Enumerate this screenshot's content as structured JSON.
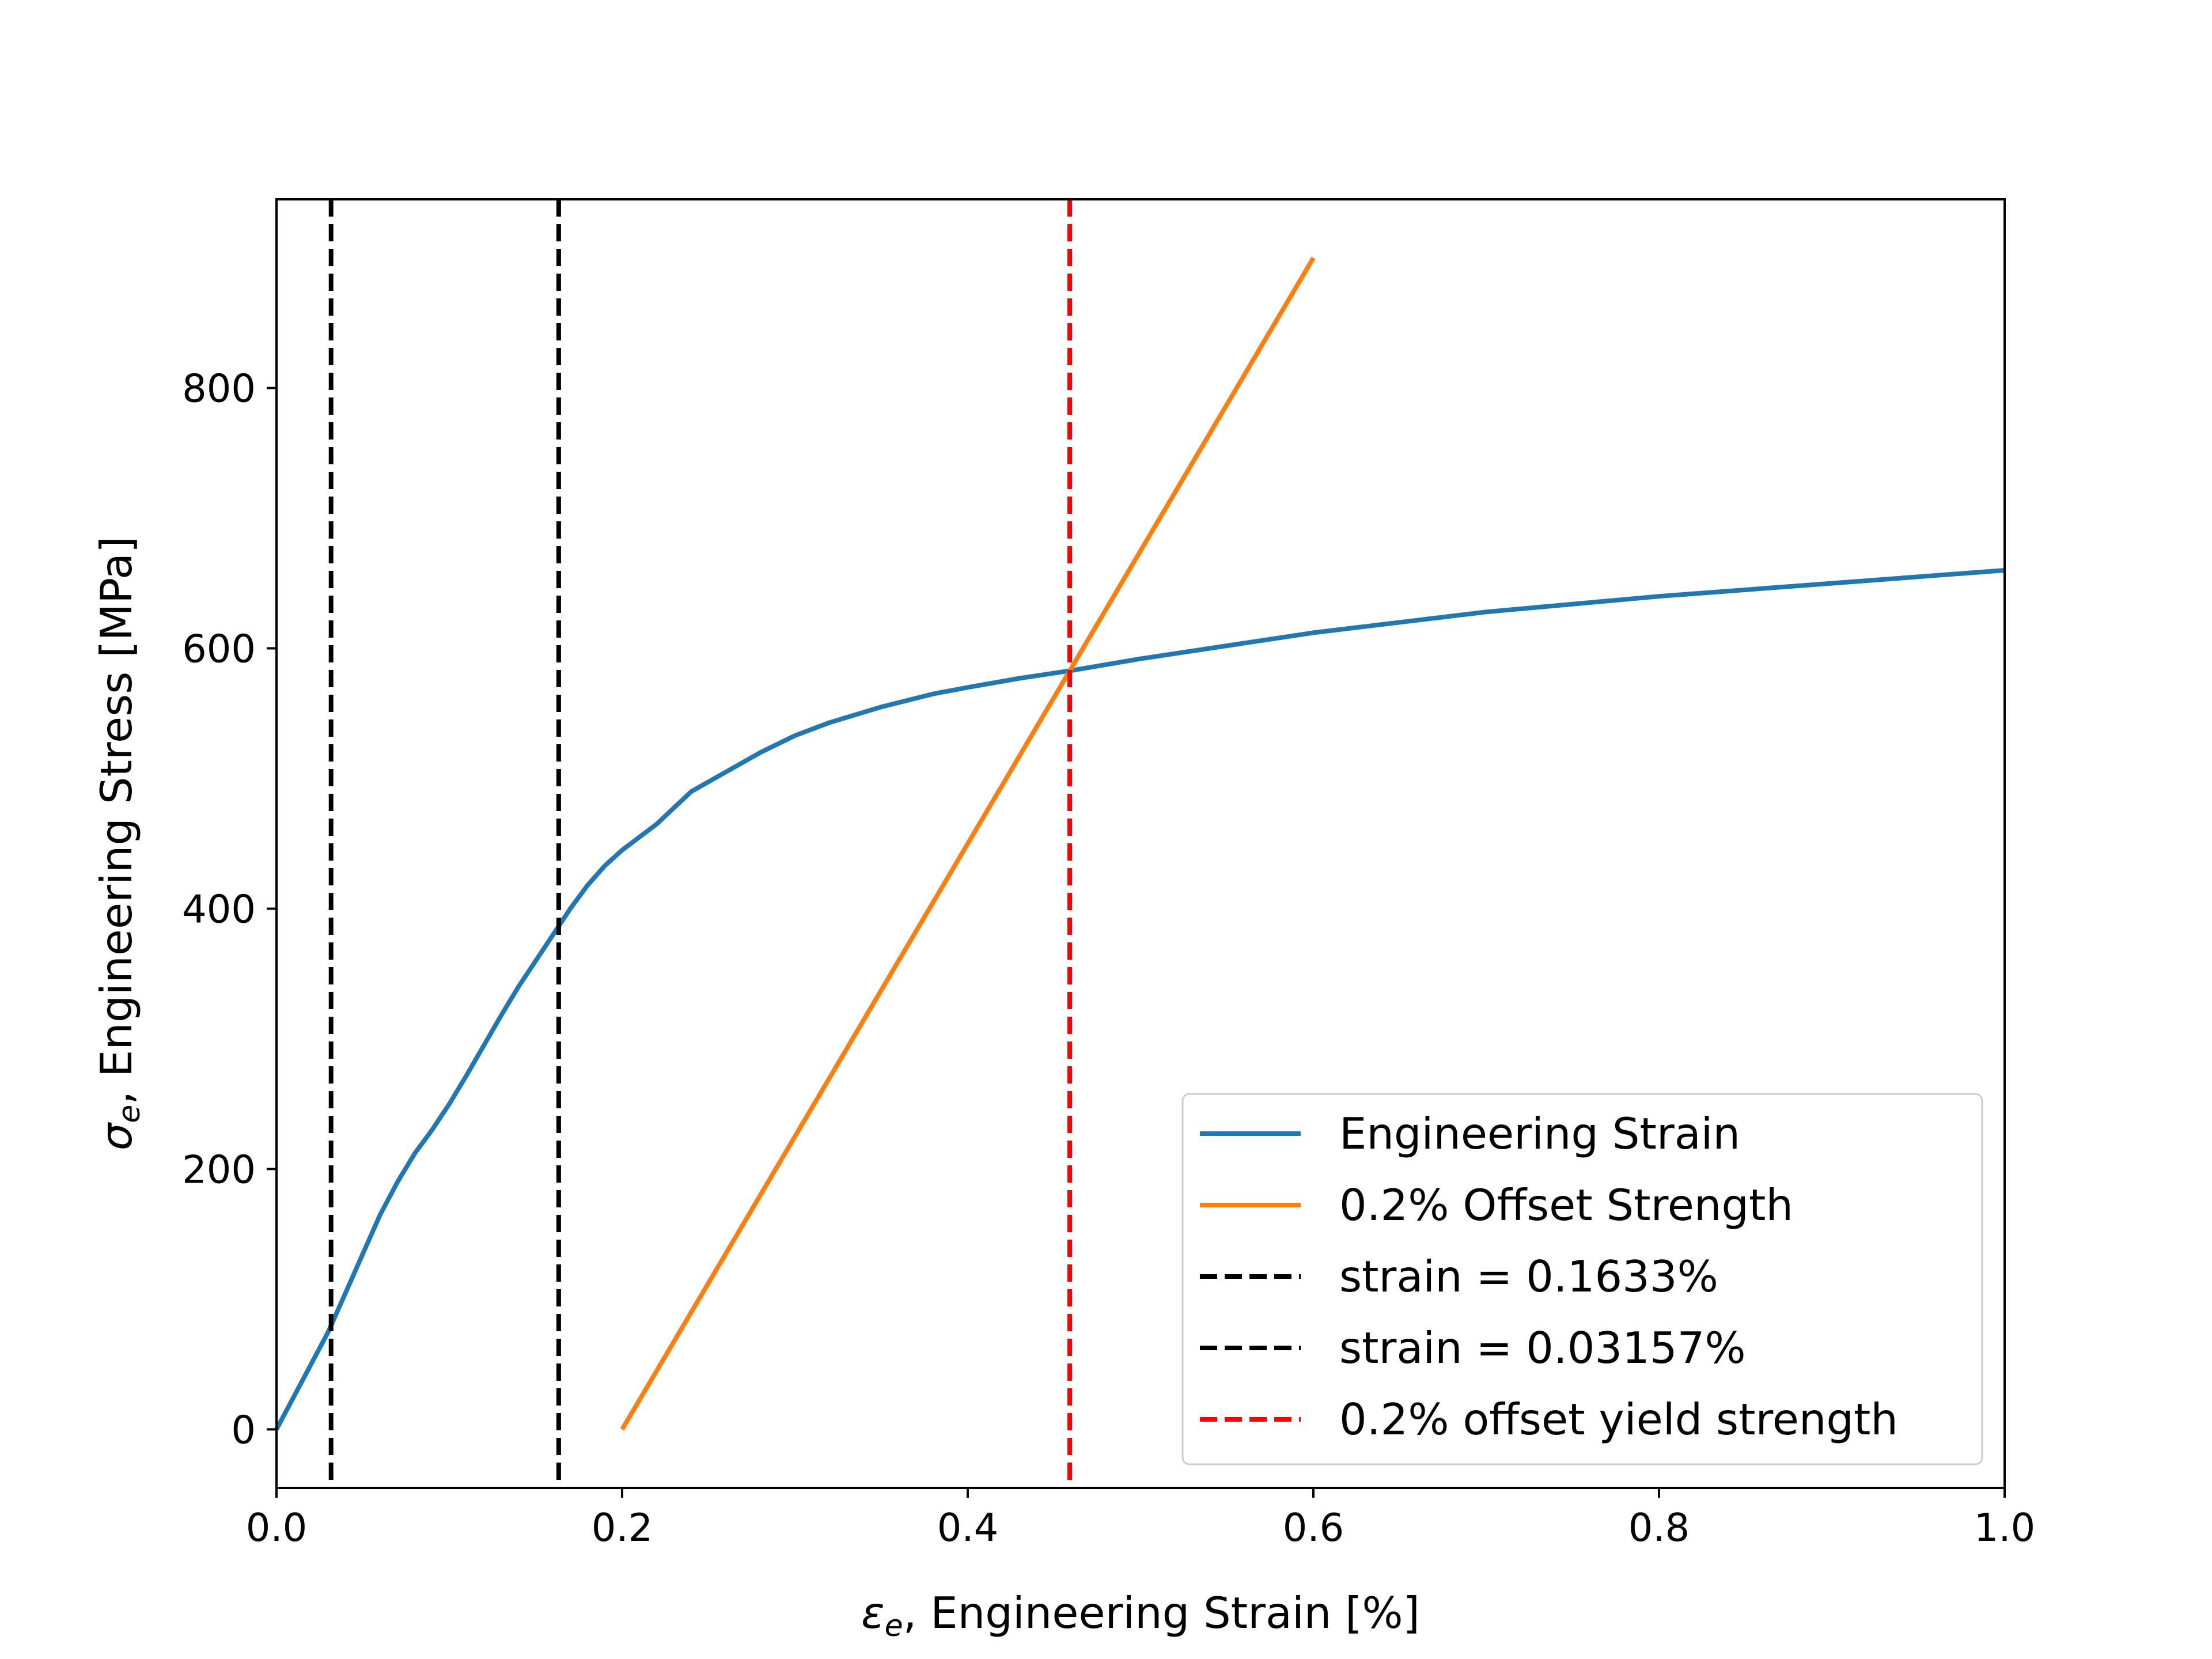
{
  "chart_data": {
    "type": "line",
    "title": "",
    "xlabel": "ε_e, Engineering Strain  [%]",
    "xlabel_parts": {
      "symbol": "ε",
      "subscript": "e",
      "rest": ", Engineering Strain  [%]"
    },
    "ylabel": "σ_e, Engineering Stress  [MPa]",
    "ylabel_parts": {
      "symbol": "σ",
      "subscript": "e",
      "rest": ", Engineering Stress  [MPa]"
    },
    "xlim": [
      0.0,
      1.0
    ],
    "ylim": [
      -45,
      945
    ],
    "xticks": [
      0.0,
      0.2,
      0.4,
      0.6,
      0.8,
      1.0
    ],
    "xtick_labels": [
      "0.0",
      "0.2",
      "0.4",
      "0.6",
      "0.8",
      "1.0"
    ],
    "yticks": [
      0,
      200,
      400,
      600,
      800
    ],
    "ytick_labels": [
      "0",
      "200",
      "400",
      "600",
      "800"
    ],
    "grid": false,
    "legend_position": "lower-right",
    "series": [
      {
        "name": "Engineering Strain",
        "color": "#1f77b4",
        "style": "solid",
        "x": [
          0.0,
          0.01,
          0.02,
          0.03,
          0.04,
          0.05,
          0.06,
          0.07,
          0.08,
          0.09,
          0.1,
          0.11,
          0.12,
          0.13,
          0.14,
          0.15,
          0.16,
          0.17,
          0.18,
          0.19,
          0.2,
          0.22,
          0.24,
          0.26,
          0.28,
          0.3,
          0.32,
          0.35,
          0.38,
          0.4,
          0.43,
          0.46,
          0.5,
          0.55,
          0.6,
          0.7,
          0.8,
          0.9,
          1.0
        ],
        "y": [
          0,
          25,
          50,
          75,
          105,
          135,
          165,
          190,
          212,
          230,
          250,
          272,
          295,
          318,
          340,
          360,
          380,
          400,
          418,
          433,
          445,
          465,
          490,
          505,
          520,
          533,
          543,
          555,
          565,
          570,
          577,
          583,
          592,
          602,
          612,
          628,
          640,
          650,
          660
        ]
      },
      {
        "name": "0.2% Offset Strength",
        "color": "#ff7f0e",
        "style": "solid",
        "x": [
          0.2,
          0.6
        ],
        "y": [
          0,
          900
        ]
      }
    ],
    "vlines": [
      {
        "name": "strain = 0.1633%",
        "x": 0.1633,
        "color": "#000000",
        "style": "dashed"
      },
      {
        "name": "strain = 0.03157%",
        "x": 0.03157,
        "color": "#000000",
        "style": "dashed"
      },
      {
        "name": "0.2% offset yield strength",
        "x": 0.459,
        "color": "#ff0000",
        "style": "dashed"
      }
    ]
  }
}
